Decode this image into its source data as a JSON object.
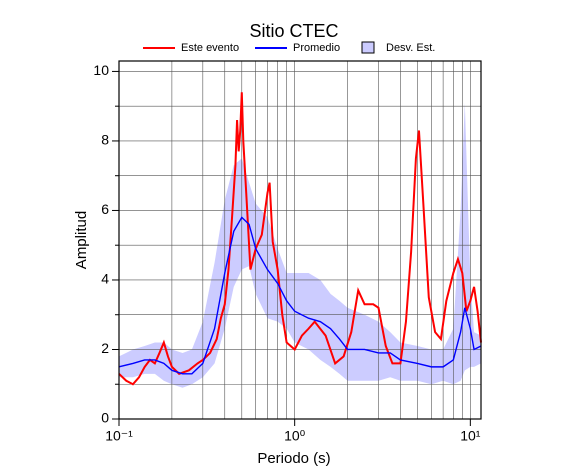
{
  "chart_data": {
    "type": "line",
    "title": "Sitio CTEC",
    "x_label": "Periodo (s)",
    "y_label": "Amplitud",
    "xscale": "log",
    "grid": true,
    "xlim": [
      0.1,
      11.5
    ],
    "ylim": [
      0,
      10.3
    ],
    "xticks": [
      {
        "value": 0.1,
        "label": "10⁻¹"
      },
      {
        "value": 1,
        "label": "10⁰"
      },
      {
        "value": 10,
        "label": "10¹"
      }
    ],
    "yticks": [
      0,
      2,
      4,
      6,
      8,
      10
    ],
    "minor_xticks": [
      0.2,
      0.3,
      0.4,
      0.5,
      0.6,
      0.7,
      0.8,
      0.9,
      2,
      3,
      4,
      5,
      6,
      7,
      8,
      9
    ],
    "minor_yticks": [
      1,
      3,
      5,
      7,
      9
    ],
    "series": [
      {
        "name": "Este evento",
        "color": "#ff0000",
        "x": [
          0.1,
          0.11,
          0.12,
          0.13,
          0.14,
          0.15,
          0.16,
          0.17,
          0.18,
          0.19,
          0.2,
          0.22,
          0.25,
          0.28,
          0.3,
          0.33,
          0.36,
          0.38,
          0.4,
          0.42,
          0.44,
          0.46,
          0.47,
          0.48,
          0.49,
          0.5,
          0.51,
          0.53,
          0.56,
          0.6,
          0.65,
          0.7,
          0.72,
          0.75,
          0.8,
          0.85,
          0.9,
          1.0,
          1.1,
          1.2,
          1.3,
          1.5,
          1.7,
          1.9,
          2.1,
          2.3,
          2.5,
          2.8,
          3.0,
          3.3,
          3.6,
          4.0,
          4.3,
          4.6,
          4.9,
          5.1,
          5.4,
          5.8,
          6.3,
          6.8,
          7.3,
          8.0,
          8.5,
          9.0,
          9.5,
          10.0,
          10.5,
          11.0,
          11.5
        ],
        "values": [
          1.3,
          1.1,
          1.0,
          1.2,
          1.5,
          1.7,
          1.6,
          1.9,
          2.2,
          1.8,
          1.5,
          1.3,
          1.4,
          1.6,
          1.7,
          1.9,
          2.3,
          2.9,
          3.3,
          4.3,
          5.8,
          7.3,
          8.6,
          7.7,
          8.3,
          9.4,
          8.0,
          6.5,
          4.3,
          4.9,
          5.3,
          6.5,
          6.8,
          5.1,
          4.3,
          3.0,
          2.2,
          2.0,
          2.4,
          2.6,
          2.8,
          2.4,
          1.6,
          1.8,
          2.5,
          3.7,
          3.3,
          3.3,
          3.2,
          2.1,
          1.6,
          1.6,
          2.8,
          4.8,
          7.5,
          8.3,
          6.2,
          3.5,
          2.5,
          2.3,
          3.4,
          4.2,
          4.6,
          4.2,
          3.1,
          3.4,
          3.8,
          3.1,
          2.2
        ]
      },
      {
        "name": "Promedio",
        "color": "#0000ff",
        "x": [
          0.1,
          0.12,
          0.14,
          0.16,
          0.18,
          0.2,
          0.23,
          0.26,
          0.3,
          0.35,
          0.4,
          0.45,
          0.5,
          0.55,
          0.6,
          0.7,
          0.8,
          0.9,
          1.0,
          1.2,
          1.4,
          1.6,
          1.8,
          2.0,
          2.5,
          3.0,
          3.5,
          4.0,
          5.0,
          6.0,
          7.0,
          8.0,
          8.8,
          9.3,
          10,
          10.5,
          11.5
        ],
        "values": [
          1.5,
          1.6,
          1.7,
          1.7,
          1.6,
          1.4,
          1.3,
          1.3,
          1.6,
          2.6,
          4.2,
          5.4,
          5.8,
          5.6,
          4.9,
          4.3,
          3.9,
          3.4,
          3.1,
          2.9,
          2.8,
          2.6,
          2.3,
          2.0,
          2.0,
          1.9,
          1.9,
          1.7,
          1.6,
          1.5,
          1.5,
          1.7,
          2.5,
          3.2,
          2.6,
          2.0,
          2.1
        ]
      },
      {
        "name": "Desv. Est.",
        "color": "#ccccff",
        "x": [
          0.1,
          0.12,
          0.14,
          0.16,
          0.18,
          0.2,
          0.23,
          0.26,
          0.3,
          0.35,
          0.4,
          0.45,
          0.5,
          0.55,
          0.6,
          0.7,
          0.8,
          0.9,
          1.0,
          1.2,
          1.4,
          1.6,
          1.8,
          2.0,
          2.5,
          3.0,
          3.5,
          4.0,
          5.0,
          6.0,
          7.0,
          8.0,
          8.8,
          9.3,
          10,
          10.5,
          11.5
        ],
        "upper": [
          1.8,
          2.0,
          2.1,
          2.2,
          2.2,
          2.0,
          1.9,
          2.0,
          2.8,
          4.5,
          6.3,
          7.3,
          7.5,
          6.8,
          6.2,
          5.8,
          4.9,
          4.2,
          4.2,
          4.2,
          4.0,
          3.6,
          3.4,
          3.2,
          3.0,
          2.8,
          2.5,
          2.2,
          2.1,
          2.0,
          2.0,
          2.6,
          6.0,
          9.1,
          4.0,
          2.5,
          2.4
        ],
        "lower": [
          1.2,
          1.2,
          1.3,
          1.3,
          1.1,
          1.0,
          0.9,
          1.0,
          1.2,
          1.6,
          2.6,
          3.8,
          4.3,
          4.4,
          3.6,
          2.9,
          2.8,
          2.6,
          2.2,
          2.0,
          1.7,
          1.5,
          1.3,
          1.1,
          1.1,
          1.1,
          1.2,
          1.1,
          1.1,
          1.0,
          1.1,
          1.0,
          1.1,
          1.4,
          1.5,
          1.5,
          1.6
        ]
      }
    ]
  }
}
